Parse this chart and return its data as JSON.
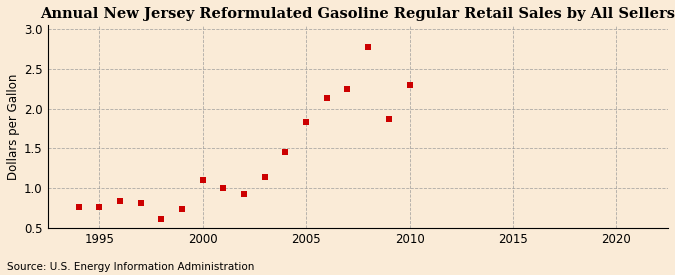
{
  "title": "Annual New Jersey Reformulated Gasoline Regular Retail Sales by All Sellers",
  "ylabel": "Dollars per Gallon",
  "source": "Source: U.S. Energy Information Administration",
  "years": [
    1994,
    1995,
    1996,
    1997,
    1998,
    1999,
    2000,
    2001,
    2002,
    2003,
    2004,
    2005,
    2006,
    2007,
    2008,
    2009,
    2010
  ],
  "values": [
    0.76,
    0.76,
    0.84,
    0.82,
    0.62,
    0.74,
    1.11,
    1.01,
    0.93,
    1.14,
    1.45,
    1.83,
    2.13,
    2.25,
    2.77,
    1.87,
    2.3
  ],
  "marker_color": "#cc0000",
  "background_color": "#faebd7",
  "xlim": [
    1992.5,
    2022.5
  ],
  "ylim": [
    0.5,
    3.05
  ],
  "yticks": [
    0.5,
    1.0,
    1.5,
    2.0,
    2.5,
    3.0
  ],
  "ytick_labels": [
    "0.5",
    "1.0",
    "1.5",
    "2.0",
    "2.5",
    "3.0"
  ],
  "xticks": [
    1995,
    2000,
    2005,
    2010,
    2015,
    2020
  ],
  "grid_color": "#999999",
  "title_fontsize": 10.5,
  "label_fontsize": 8.5,
  "tick_fontsize": 8.5,
  "source_fontsize": 7.5
}
